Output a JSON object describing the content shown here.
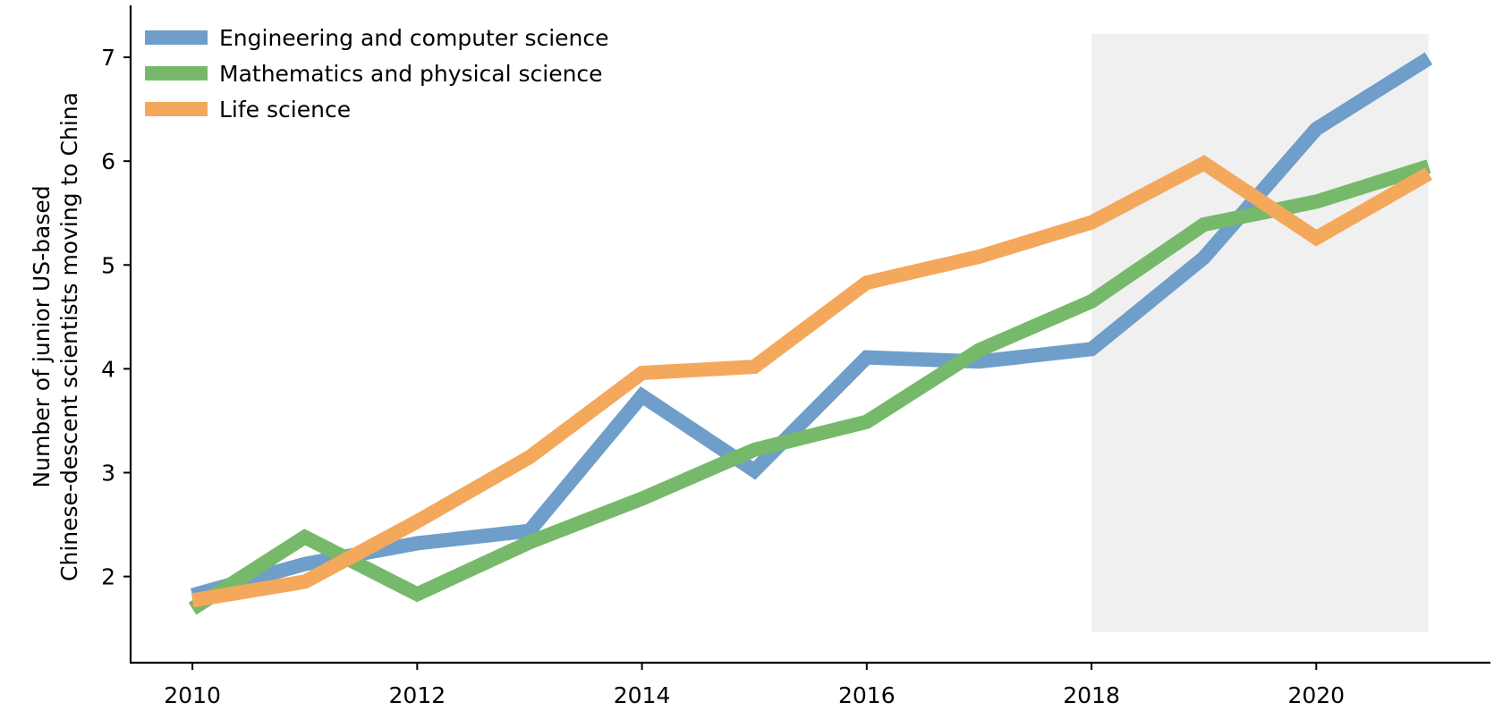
{
  "chart_data": {
    "type": "line",
    "title": "",
    "xlabel": "",
    "ylabel": [
      "Number of junior US-based",
      "Chinese-descent scientists moving to China"
    ],
    "x": [
      2010,
      2011,
      2012,
      2013,
      2014,
      2015,
      2016,
      2017,
      2018,
      2019,
      2020,
      2021
    ],
    "xlim": [
      2009.45,
      2021.55
    ],
    "ylim": [
      1.17,
      7.5
    ],
    "xticks": [
      2010,
      2012,
      2014,
      2016,
      2018,
      2020
    ],
    "yticks": [
      2,
      3,
      4,
      5,
      6,
      7
    ],
    "grid": false,
    "legend_position": "top-left",
    "shaded_region": {
      "x": [
        2018,
        2021
      ],
      "color": "#f0f0f0"
    },
    "series": [
      {
        "name": "Engineering and computer science",
        "color": "#6e9ec9",
        "values": [
          1.82,
          2.12,
          2.32,
          2.44,
          3.74,
          3.02,
          4.11,
          4.07,
          4.19,
          5.07,
          6.31,
          6.99
        ]
      },
      {
        "name": "Mathematics and physical science",
        "color": "#77b96a",
        "values": [
          1.69,
          2.38,
          1.83,
          2.33,
          2.75,
          3.22,
          3.49,
          4.18,
          4.65,
          5.39,
          5.61,
          5.95
        ]
      },
      {
        "name": "Life science",
        "color": "#f4a85c",
        "values": [
          1.77,
          1.95,
          2.53,
          3.15,
          3.96,
          4.02,
          4.83,
          5.08,
          5.41,
          5.98,
          5.26,
          5.88
        ]
      }
    ]
  }
}
